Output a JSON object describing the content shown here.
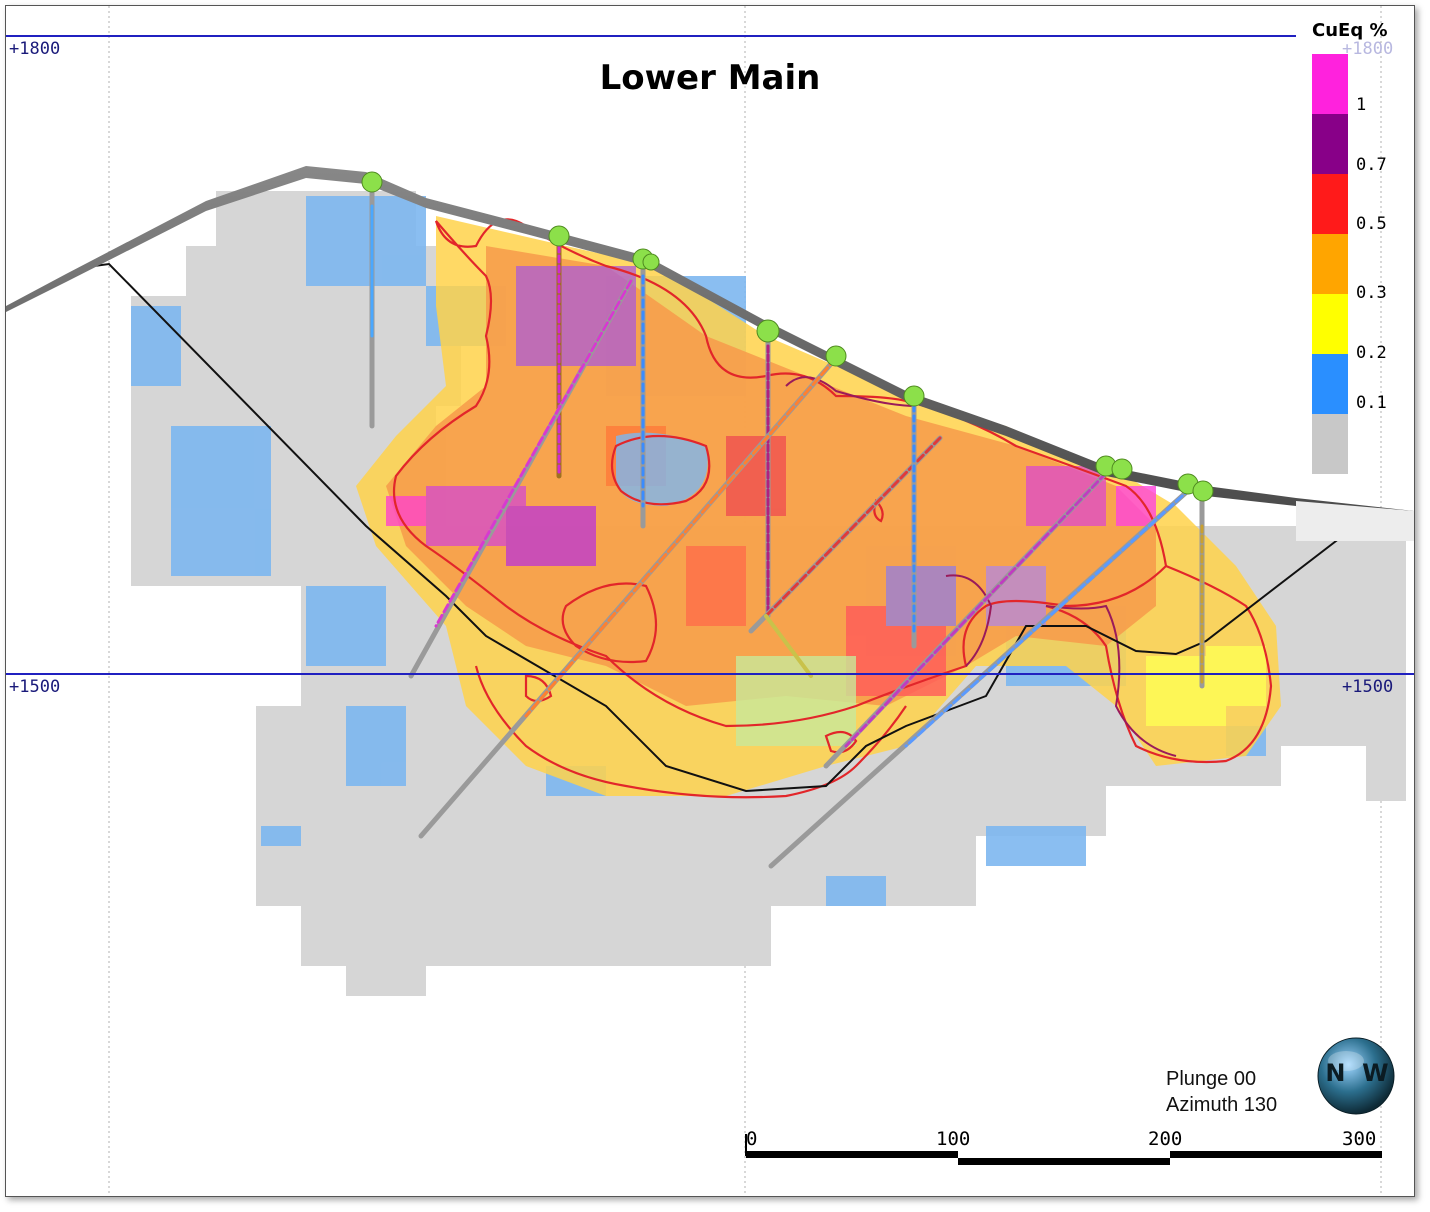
{
  "title": "Lower Main",
  "elevations": {
    "top_left": "+1800",
    "top_right": "+1800",
    "mid_left": "+1500",
    "mid_right": "+1500"
  },
  "legend": {
    "title": "CuEq %",
    "bins": [
      {
        "label": "1",
        "color": "#ff22dd"
      },
      {
        "label": "0.7",
        "color": "#880088"
      },
      {
        "label": "0.5",
        "color": "#ff1a1a"
      },
      {
        "label": "0.3",
        "color": "#ffa500"
      },
      {
        "label": "0.2",
        "color": "#ffff00"
      },
      {
        "label": "0.1",
        "color": "#2a8fff"
      },
      {
        "label": "",
        "color": "#c8c8c8"
      }
    ]
  },
  "orientation": {
    "plunge": "Plunge 00",
    "azimuth": "Azimuth 130",
    "compass_letters": "N  W"
  },
  "scale_bar": {
    "labels": [
      "0",
      "100",
      "200",
      "300"
    ]
  }
}
